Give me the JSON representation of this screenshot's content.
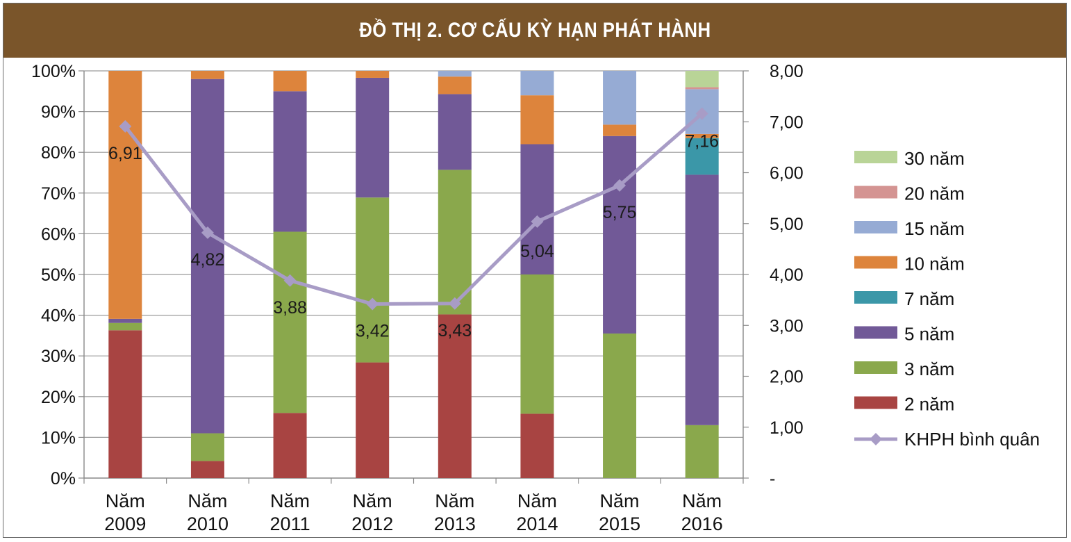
{
  "header": {
    "title": "ĐỒ THỊ 2. CƠ CẤU KỲ HẠN PHÁT HÀNH"
  },
  "chart_data": {
    "type": "bar",
    "stacked": true,
    "title": "ĐỒ THỊ 2. CƠ CẤU KỲ HẠN PHÁT HÀNH",
    "categories": [
      [
        "Năm",
        "2009"
      ],
      [
        "Năm",
        "2010"
      ],
      [
        "Năm",
        "2011"
      ],
      [
        "Năm",
        "2012"
      ],
      [
        "Năm",
        "2013"
      ],
      [
        "Năm",
        "2014"
      ],
      [
        "Năm",
        "2015"
      ],
      [
        "Năm",
        "2016"
      ]
    ],
    "y_left": {
      "ticks": [
        "0%",
        "10%",
        "20%",
        "30%",
        "40%",
        "50%",
        "60%",
        "70%",
        "80%",
        "90%",
        "100%"
      ],
      "range": [
        0,
        100
      ]
    },
    "y_right": {
      "ticks": [
        "-",
        "1,00",
        "2,00",
        "3,00",
        "4,00",
        "5,00",
        "6,00",
        "7,00",
        "8,00"
      ],
      "range": [
        0,
        8
      ]
    },
    "series": [
      {
        "name": "2 năm",
        "color": "#a84442",
        "values": [
          36.3,
          4.2,
          16.0,
          28.4,
          40.2,
          15.8,
          0,
          0
        ]
      },
      {
        "name": "3 năm",
        "color": "#8aa84c",
        "values": [
          1.8,
          6.8,
          44.5,
          40.5,
          35.5,
          34.2,
          35.5,
          13.0
        ]
      },
      {
        "name": "5 năm",
        "color": "#715997",
        "values": [
          1.0,
          87.0,
          34.5,
          29.4,
          18.6,
          32.0,
          48.5,
          61.5
        ]
      },
      {
        "name": "7 năm",
        "color": "#3b97a8",
        "values": [
          0,
          0,
          0,
          0,
          0,
          0,
          0,
          9.0
        ]
      },
      {
        "name": "10 năm",
        "color": "#dd843c",
        "values": [
          60.9,
          2.0,
          5.0,
          1.7,
          4.3,
          12.0,
          2.8,
          1.0
        ]
      },
      {
        "name": "15 năm",
        "color": "#96abd4",
        "values": [
          0,
          0,
          0,
          0,
          1.4,
          6.0,
          13.2,
          11.0
        ]
      },
      {
        "name": "20 năm",
        "color": "#d49492",
        "values": [
          0,
          0,
          0,
          0,
          0,
          0,
          0,
          0.5
        ]
      },
      {
        "name": "30 năm",
        "color": "#b9d497",
        "values": [
          0,
          0,
          0,
          0,
          0,
          0,
          0,
          4.0
        ]
      }
    ],
    "line": {
      "name": "KHPH bình quân",
      "color": "#a89cc6",
      "values": [
        6.91,
        4.82,
        3.88,
        3.42,
        3.43,
        5.04,
        5.75,
        7.16
      ],
      "labels": [
        "6,91",
        "4,82",
        "3,88",
        "3,42",
        "3,43",
        "5,04",
        "5,75",
        "7,16"
      ]
    },
    "legend_position": "right"
  }
}
